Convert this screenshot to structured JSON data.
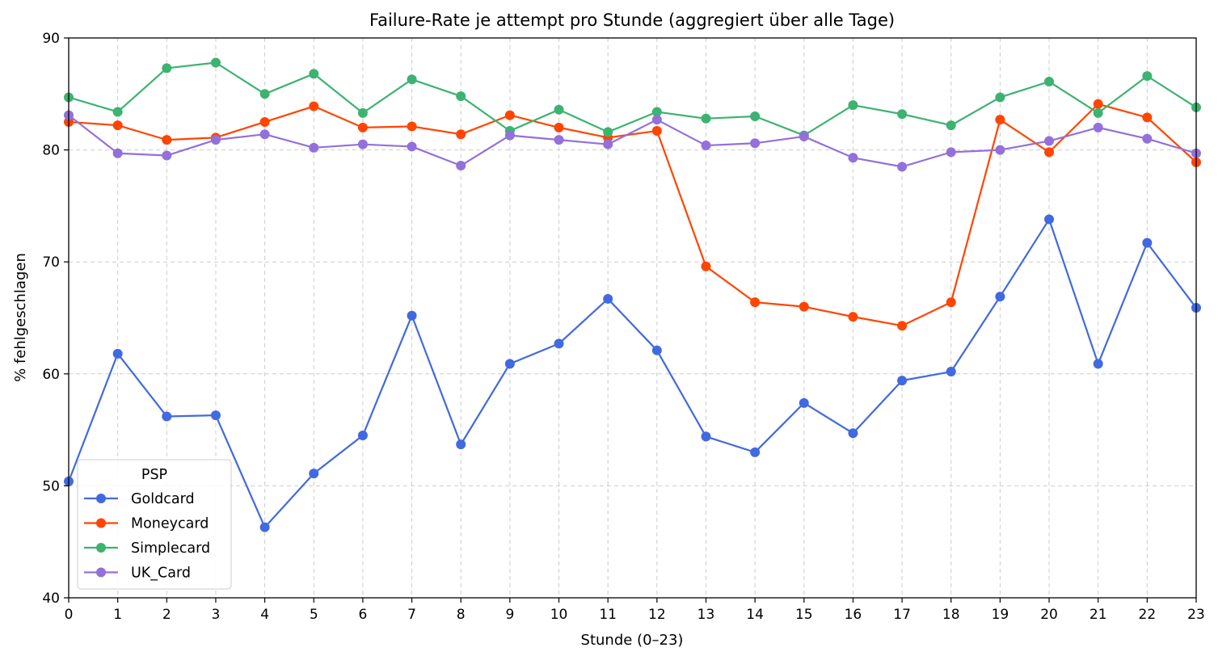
{
  "chart_data": {
    "type": "line",
    "title": "Failure-Rate je attempt pro Stunde (aggregiert über alle Tage)",
    "xlabel": "Stunde (0–23)",
    "ylabel": "% fehlgeschlagen",
    "x": [
      0,
      1,
      2,
      3,
      4,
      5,
      6,
      7,
      8,
      9,
      10,
      11,
      12,
      13,
      14,
      15,
      16,
      17,
      18,
      19,
      20,
      21,
      22,
      23
    ],
    "xlim": [
      0,
      23
    ],
    "ylim": [
      40,
      90
    ],
    "yticks": [
      40,
      50,
      60,
      70,
      80,
      90
    ],
    "grid": true,
    "legend": {
      "title": "PSP",
      "placement": "lower-left"
    },
    "series": [
      {
        "name": "Goldcard",
        "color": "#4169E1",
        "values": [
          50.4,
          61.8,
          56.2,
          56.3,
          46.3,
          51.1,
          54.5,
          65.2,
          53.7,
          60.9,
          62.7,
          66.7,
          62.1,
          54.4,
          53.0,
          57.4,
          54.7,
          59.4,
          60.2,
          66.9,
          73.8,
          60.9,
          71.7,
          65.9
        ]
      },
      {
        "name": "Moneycard",
        "color": "#FF4500",
        "values": [
          82.5,
          82.2,
          80.9,
          81.1,
          82.5,
          83.9,
          82.0,
          82.1,
          81.4,
          83.1,
          82.0,
          81.1,
          81.7,
          69.6,
          66.4,
          66.0,
          65.1,
          64.3,
          66.4,
          82.7,
          79.8,
          84.1,
          82.9,
          78.9
        ]
      },
      {
        "name": "Simplecard",
        "color": "#3CB371",
        "values": [
          84.7,
          83.4,
          87.3,
          87.8,
          85.0,
          86.8,
          83.3,
          86.3,
          84.8,
          81.7,
          83.6,
          81.6,
          83.4,
          82.8,
          83.0,
          81.3,
          84.0,
          83.2,
          82.2,
          84.7,
          86.1,
          83.3,
          86.6,
          83.8
        ]
      },
      {
        "name": "UK_Card",
        "color": "#9370DB",
        "values": [
          83.1,
          79.7,
          79.5,
          80.9,
          81.4,
          80.2,
          80.5,
          80.3,
          78.6,
          81.3,
          80.9,
          80.5,
          82.7,
          80.4,
          80.6,
          81.2,
          79.3,
          78.5,
          79.8,
          80.0,
          80.8,
          82.0,
          81.0,
          79.7
        ]
      }
    ]
  }
}
